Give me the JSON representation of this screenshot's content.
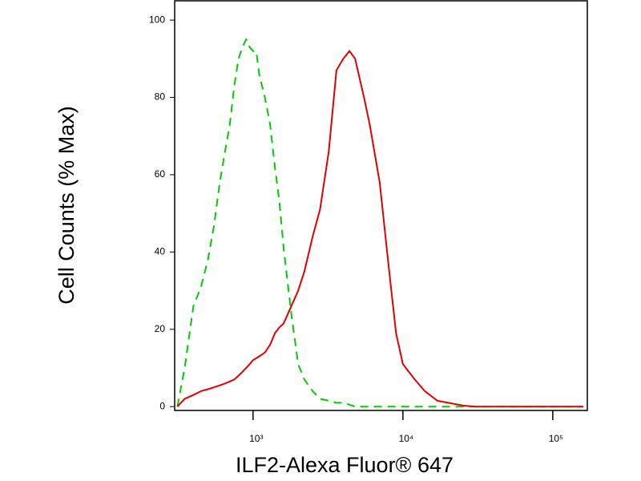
{
  "chart_data": {
    "type": "line",
    "xlabel": "ILF2-Alexa Fluor® 647",
    "ylabel": "Cell Counts (% Max)",
    "xscale": "log",
    "xlim": [
      300,
      170000
    ],
    "ylim": [
      -1,
      105
    ],
    "xticks": [
      {
        "value": 1000,
        "label": "10³"
      },
      {
        "value": 10000,
        "label": "10⁴"
      },
      {
        "value": 100000,
        "label": "10⁵"
      }
    ],
    "yticks": [
      0,
      20,
      40,
      60,
      80,
      100
    ],
    "x": [
      313,
      350,
      400,
      450,
      500,
      550,
      600,
      650,
      700,
      750,
      800,
      850,
      900,
      950,
      1000,
      1050,
      1100,
      1200,
      1300,
      1400,
      1500,
      1600,
      1800,
      2000,
      2200,
      2500,
      2800,
      3200,
      3600,
      4000,
      4400,
      4800,
      5500,
      6000,
      7000,
      8000,
      9000,
      10000,
      12000,
      14000,
      17000,
      20000,
      25000,
      30000,
      50000,
      160000
    ],
    "series": [
      {
        "color": "#00cc00",
        "style": "dashed",
        "values": [
          0,
          10,
          26,
          31,
          38,
          47,
          58,
          66,
          73,
          83,
          90,
          93,
          95,
          93,
          92,
          92,
          86,
          80,
          73,
          62,
          53,
          41,
          24,
          11,
          7,
          4,
          2,
          1.5,
          1,
          1,
          0.5,
          0,
          0,
          0,
          0,
          0,
          0,
          0,
          0,
          0,
          0,
          0,
          0,
          0,
          0,
          0
        ]
      },
      {
        "color": "#e00000",
        "style": "solid",
        "values": [
          0,
          2,
          3,
          4,
          4.5,
          5,
          5.5,
          6,
          6.5,
          7,
          8,
          9,
          10,
          11,
          12,
          12.5,
          13,
          14,
          16,
          19,
          20.5,
          21.5,
          26,
          30,
          35,
          44,
          51,
          66,
          87,
          90,
          92,
          90,
          80,
          73,
          58,
          37,
          19,
          11,
          7,
          4,
          1.5,
          1,
          0.3,
          0,
          0,
          0
        ]
      }
    ]
  }
}
